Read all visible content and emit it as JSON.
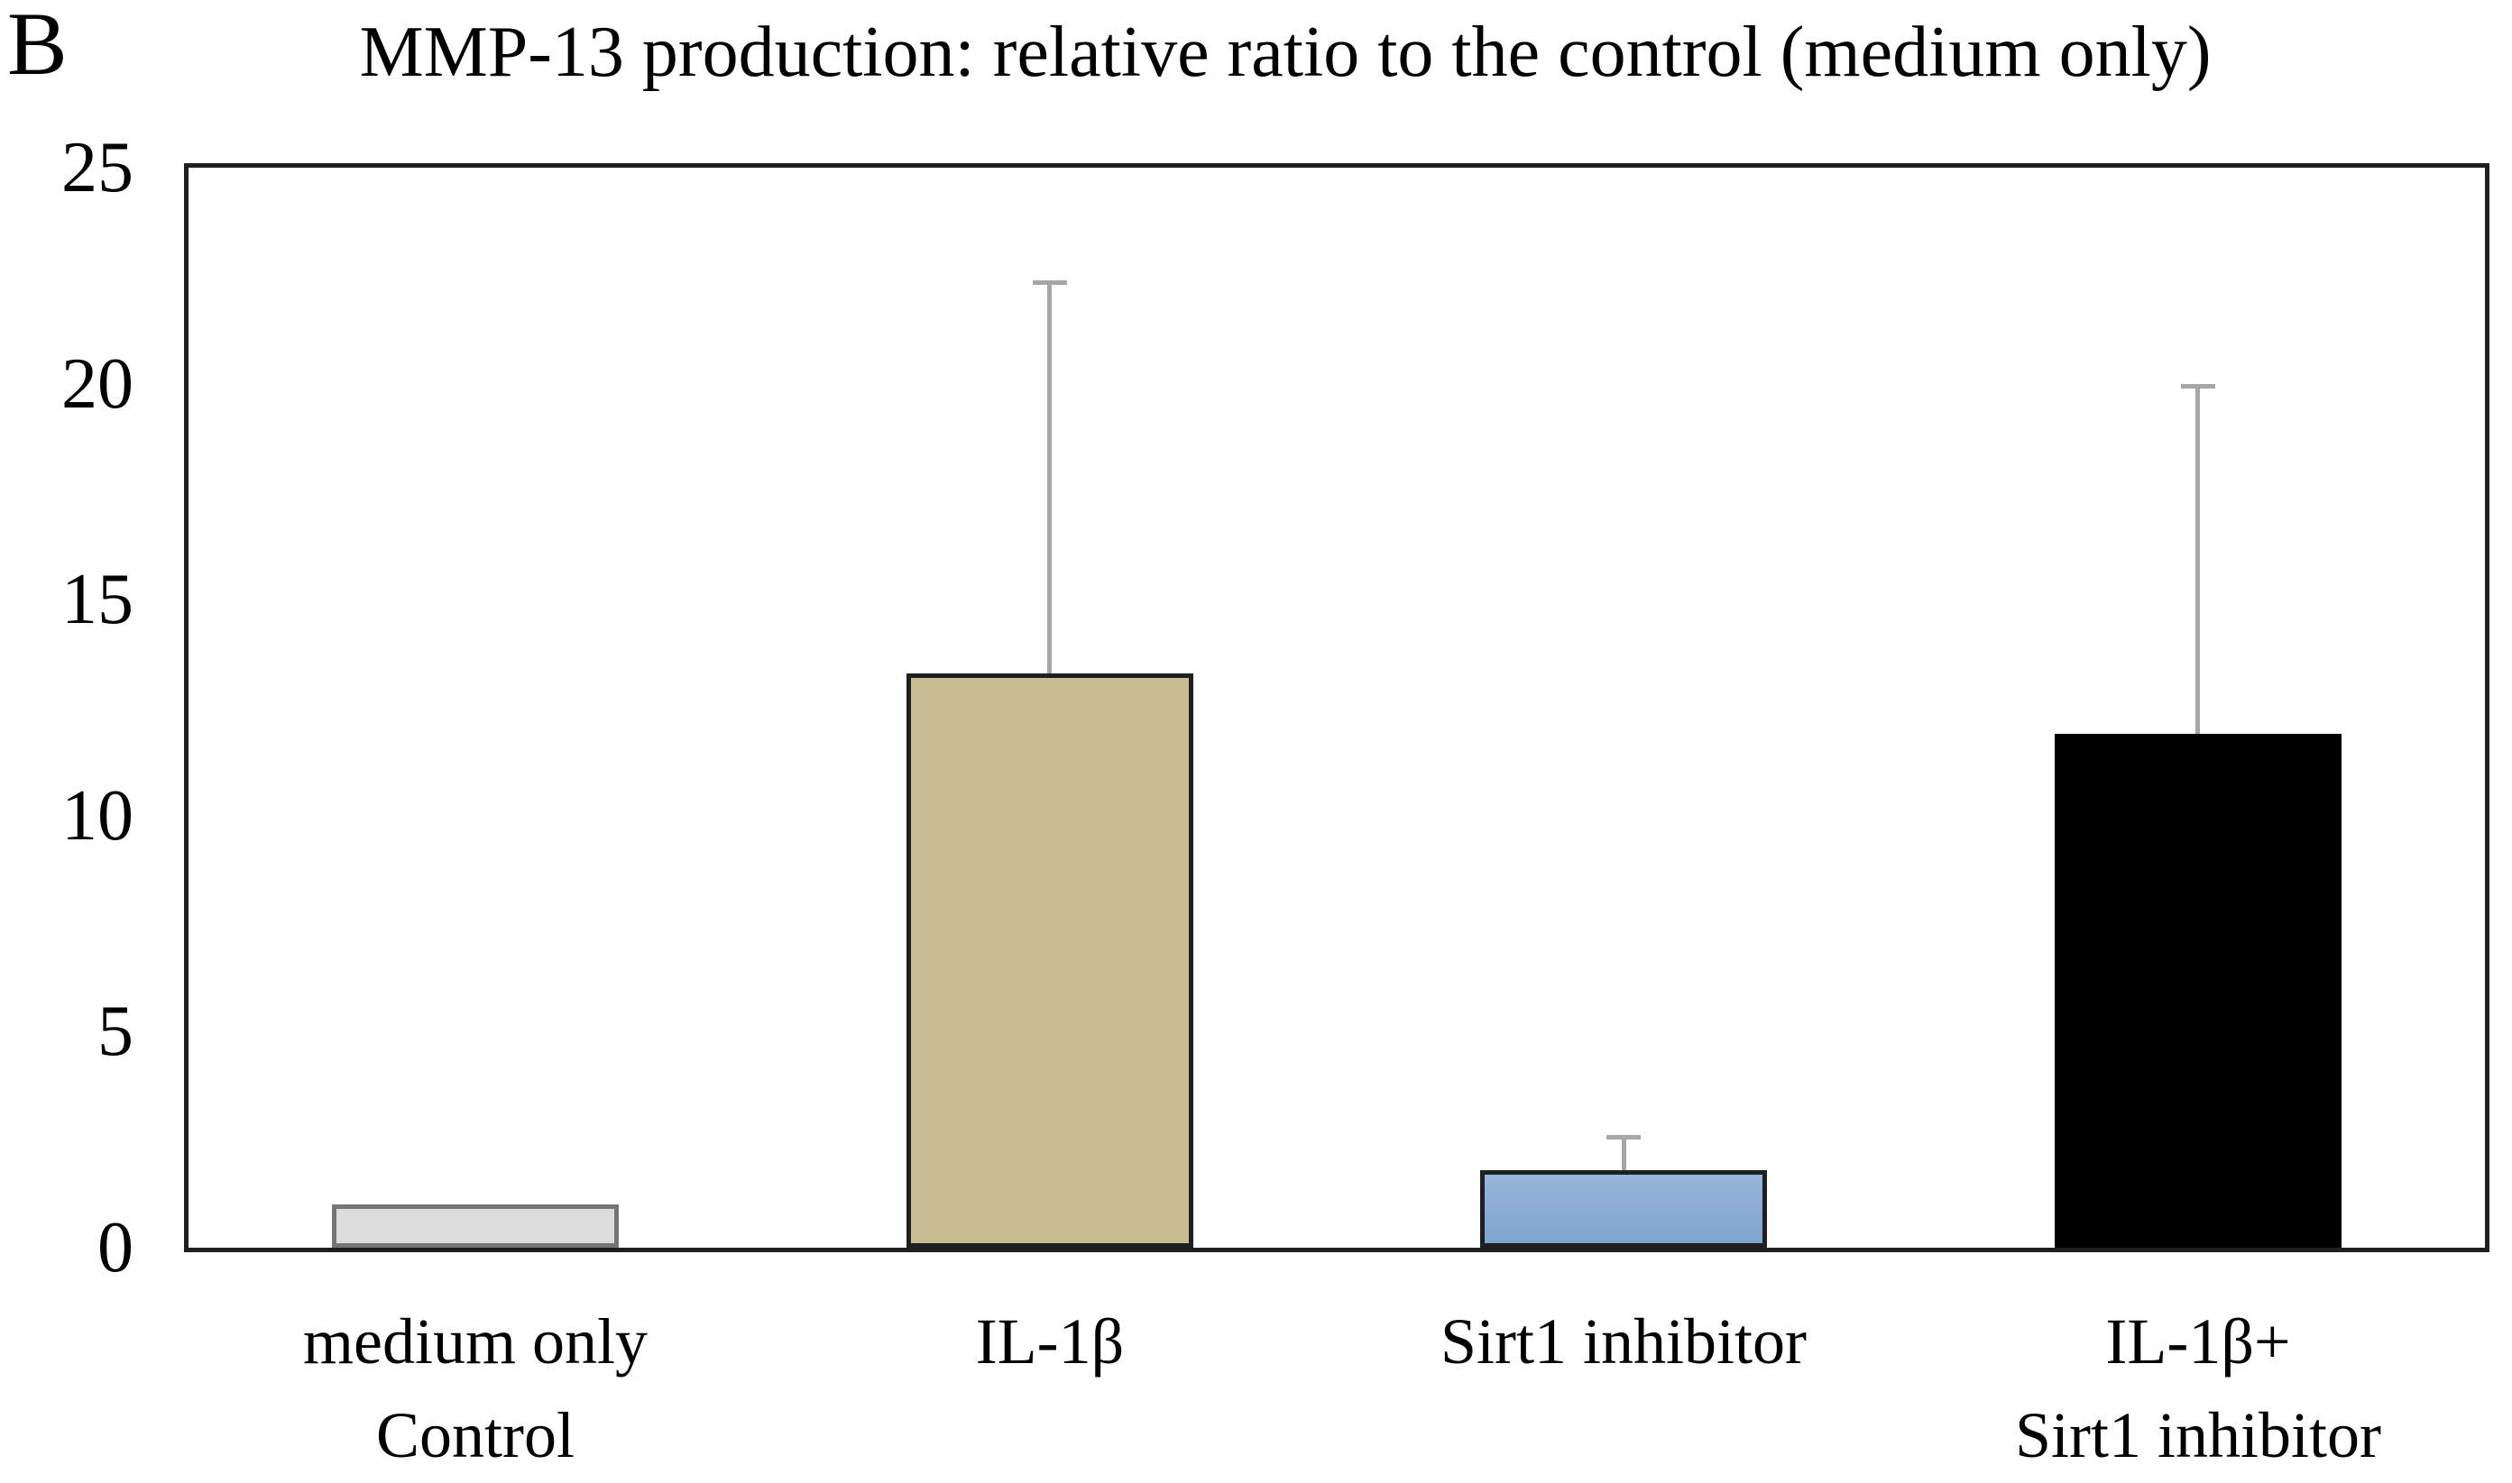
{
  "panel_label": "B",
  "chart_data": {
    "type": "bar",
    "title": "MMP-13 production: relative ratio to the control (medium only)",
    "xlabel": "",
    "ylabel": "",
    "ylim": [
      0,
      25
    ],
    "yticks": [
      0,
      5,
      10,
      15,
      20,
      25
    ],
    "grid": false,
    "legend_position": "none",
    "categories": [
      "medium only\nControl",
      "IL-1β",
      "Sirt1 inhibitor",
      "IL-1β+\nSirt1 inhibitor"
    ],
    "values": [
      1.0,
      13.3,
      1.8,
      11.9
    ],
    "errors_upper": [
      0,
      9.1,
      0.8,
      8.1
    ],
    "bars": [
      {
        "label_line1": "medium only",
        "label_line2": "Control",
        "value": 1.0,
        "error_upper": 0,
        "fill": "#dcdcdc",
        "fill2": "",
        "border": "#757575"
      },
      {
        "label_line1": "IL-1β",
        "label_line2": "",
        "value": 13.3,
        "error_upper": 9.1,
        "fill": "#c8bc95",
        "fill2": "",
        "border": "#1f1f1f"
      },
      {
        "label_line1": "Sirt1 inhibitor",
        "label_line2": "",
        "value": 1.8,
        "error_upper": 0.8,
        "fill": "#97b4da",
        "fill2": "#7ea5d0",
        "border": "#1f1f1f"
      },
      {
        "label_line1": "IL-1β+",
        "label_line2": "Sirt1 inhibitor",
        "value": 11.9,
        "error_upper": 8.1,
        "fill": "#000000",
        "fill2": "",
        "border": "#000000"
      }
    ],
    "error_bar_color": "#a6a6a6",
    "axis_color": "#1f1f1f"
  }
}
